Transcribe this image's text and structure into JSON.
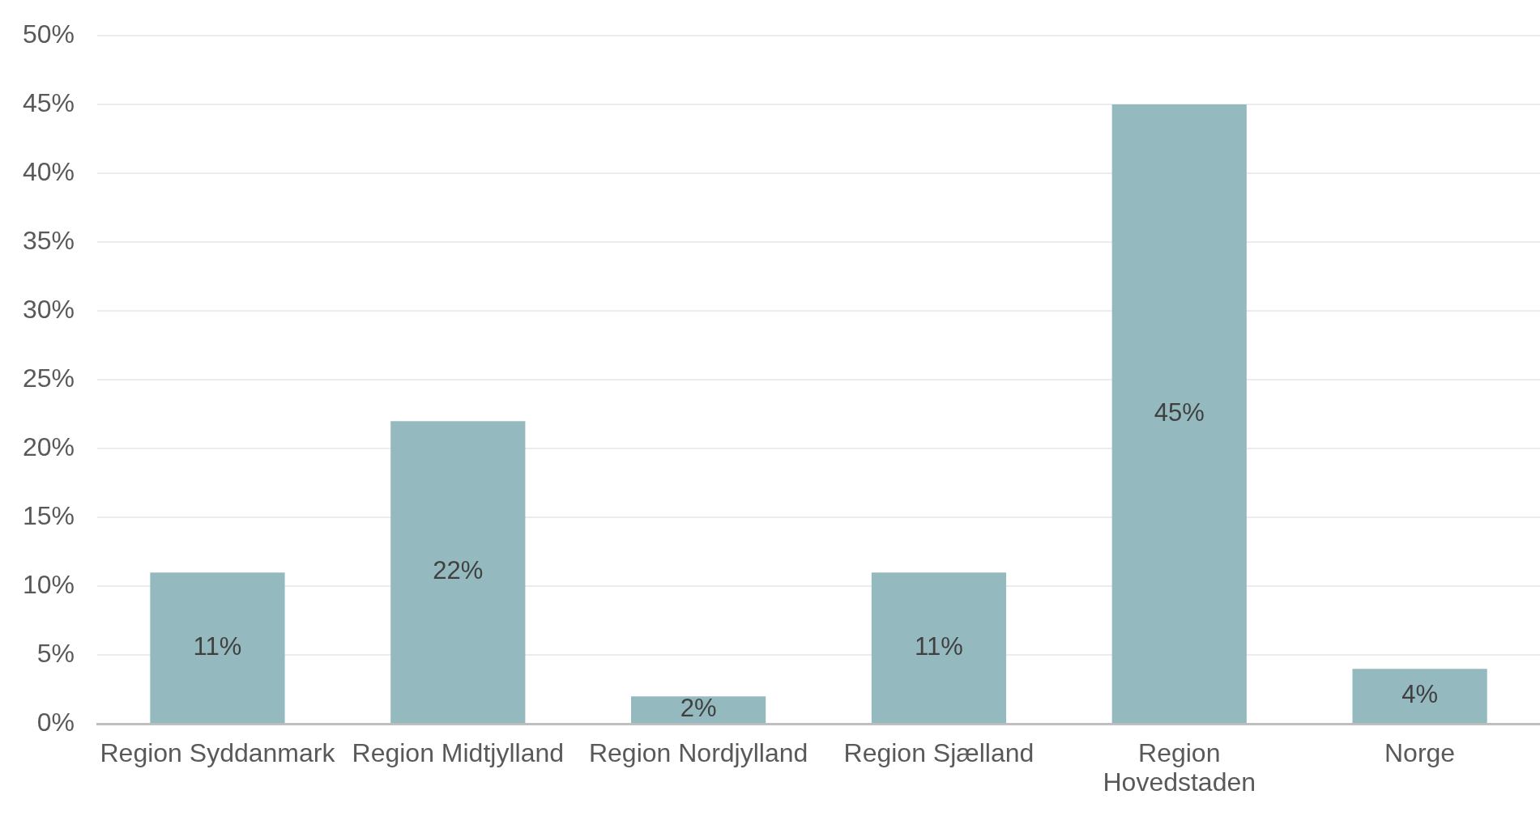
{
  "chart_data": {
    "type": "bar",
    "categories": [
      "Region Syddanmark",
      "Region Midtjylland",
      "Region Nordjylland",
      "Region Sjælland",
      "Region Hovedstaden",
      "Norge"
    ],
    "values": [
      11,
      22,
      2,
      11,
      45,
      4
    ],
    "color": "#94babf",
    "value_labels": [
      "11%",
      "22%",
      "2%",
      "11%",
      "45%",
      "4%"
    ],
    "ylim": [
      0,
      50
    ],
    "yticks": [
      {
        "value": 0,
        "label": "0%"
      },
      {
        "value": 5,
        "label": "5%"
      },
      {
        "value": 10,
        "label": "10%"
      },
      {
        "value": 15,
        "label": "15%"
      },
      {
        "value": 20,
        "label": "20%"
      },
      {
        "value": 25,
        "label": "25%"
      },
      {
        "value": 30,
        "label": "30%"
      },
      {
        "value": 35,
        "label": "35%"
      },
      {
        "value": 40,
        "label": "40%"
      },
      {
        "value": 45,
        "label": "45%"
      },
      {
        "value": 50,
        "label": "50%"
      }
    ],
    "grid": "y"
  }
}
